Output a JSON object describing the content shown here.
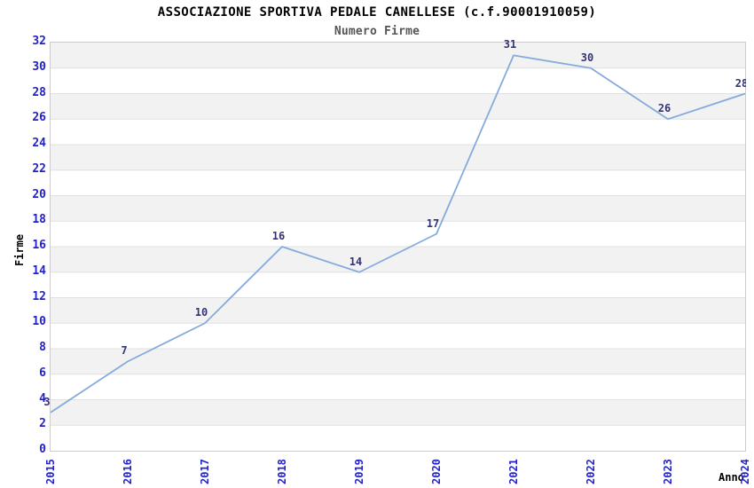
{
  "title": "ASSOCIAZIONE SPORTIVA PEDALE CANELLESE (c.f.90001910059)",
  "subtitle": "Numero Firme",
  "chart_data": {
    "type": "line",
    "x": [
      "2015",
      "2016",
      "2017",
      "2018",
      "2019",
      "2020",
      "2021",
      "2022",
      "2023",
      "2024"
    ],
    "values": [
      3,
      7,
      10,
      16,
      14,
      17,
      31,
      30,
      26,
      28
    ],
    "point_labels": [
      "3",
      "7",
      "10",
      "16",
      "14",
      "17",
      "31",
      "30",
      "26",
      "28"
    ],
    "title": "ASSOCIAZIONE SPORTIVA PEDALE CANELLESE (c.f.90001910059)",
    "subtitle": "Numero Firme",
    "xlabel": "Anno",
    "ylabel": "Firme",
    "ylim": [
      0,
      32
    ],
    "yticks": [
      0,
      2,
      4,
      6,
      8,
      10,
      12,
      14,
      16,
      18,
      20,
      22,
      24,
      26,
      28,
      30,
      32
    ],
    "grid": "horizontal-bands-alternating",
    "legend": "none",
    "colors": {
      "line": "#85ABDB",
      "tick_label": "#2222CC",
      "point_label": "#333377",
      "band": "#F2F2F2",
      "gridline": "#E0E0E0",
      "plot_border": "#CCCCCC",
      "title": "#000000",
      "subtitle": "#555555",
      "axis_label": "#000000",
      "background": "#FFFFFF"
    }
  }
}
